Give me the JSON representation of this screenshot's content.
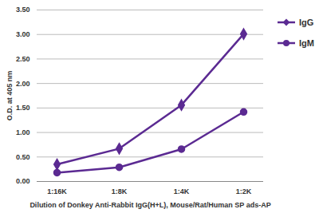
{
  "chart_data": {
    "type": "line",
    "x_label": "Dilution of Donkey Anti-Rabbit IgG(H+L), Mouse/Rat/Human SP ads-AP",
    "y_label": "O.D. at 405 nm",
    "categories": [
      "1:16K",
      "1:8K",
      "1:4K",
      "1:2K"
    ],
    "series": [
      {
        "name": "IgG",
        "color": "#5b2a92",
        "marker": "diamond",
        "values": [
          0.35,
          0.67,
          1.56,
          3.01
        ]
      },
      {
        "name": "IgM",
        "color": "#5b2a92",
        "marker": "circle",
        "values": [
          0.18,
          0.29,
          0.66,
          1.42
        ]
      }
    ],
    "ylim": [
      0,
      3.5
    ],
    "yticks": [
      {
        "value": 0,
        "label": "0.00"
      },
      {
        "value": 0.5,
        "label": "0.50"
      },
      {
        "value": 1,
        "label": "1.00"
      },
      {
        "value": 1.5,
        "label": "1.50"
      },
      {
        "value": 2,
        "label": "2.00"
      },
      {
        "value": 2.5,
        "label": "2.50"
      },
      {
        "value": 3,
        "label": "3.00"
      },
      {
        "value": 3.5,
        "label": "3.50"
      }
    ],
    "grid": true,
    "legend": "right"
  }
}
